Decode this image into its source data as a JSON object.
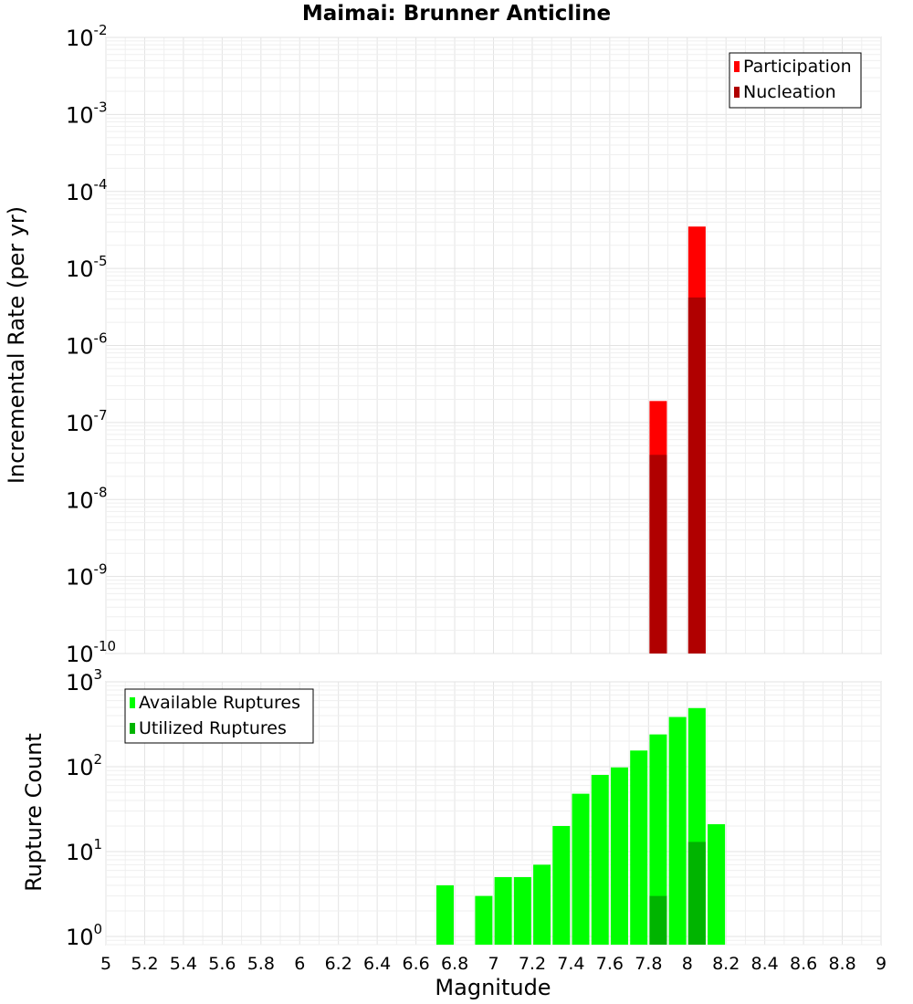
{
  "chart_data": [
    {
      "type": "bar",
      "title": "Maimai: Brunner Anticline",
      "ylabel": "Incremental Rate (per yr)",
      "xlabel": "",
      "xlim": [
        5,
        9
      ],
      "ylim": [
        1e-10,
        0.01
      ],
      "yscale": "log",
      "ytick_exponents": [
        -10,
        -9,
        -8,
        -7,
        -6,
        -5,
        -4,
        -3,
        -2
      ],
      "grid": true,
      "legend_position": "top-right",
      "series": [
        {
          "name": "Participation",
          "color": "#ff0000",
          "points": [
            {
              "x": 7.85,
              "y": 1.9e-07
            },
            {
              "x": 8.05,
              "y": 3.5e-05
            }
          ]
        },
        {
          "name": "Nucleation",
          "color": "#b00000",
          "points": [
            {
              "x": 7.85,
              "y": 3.8e-08
            },
            {
              "x": 8.05,
              "y": 4.2e-06
            }
          ]
        }
      ]
    },
    {
      "type": "bar",
      "title": "",
      "ylabel": "Rupture Count",
      "xlabel": "Magnitude",
      "xlim": [
        5,
        9
      ],
      "ylim": [
        0.8,
        1000
      ],
      "yscale": "log",
      "ytick_exponents": [
        0,
        1,
        2,
        3
      ],
      "xticks": [
        "5",
        "5.2",
        "5.4",
        "5.6",
        "5.8",
        "6",
        "6.2",
        "6.4",
        "6.6",
        "6.8",
        "7",
        "7.2",
        "7.4",
        "7.6",
        "7.8",
        "8",
        "8.2",
        "8.4",
        "8.6",
        "8.8",
        "9"
      ],
      "grid": true,
      "legend_position": "top-left",
      "series": [
        {
          "name": "Available Ruptures",
          "color": "#00ff00",
          "points": [
            {
              "x": 6.75,
              "y": 4
            },
            {
              "x": 6.95,
              "y": 3
            },
            {
              "x": 7.05,
              "y": 5
            },
            {
              "x": 7.15,
              "y": 5
            },
            {
              "x": 7.25,
              "y": 7
            },
            {
              "x": 7.35,
              "y": 20
            },
            {
              "x": 7.45,
              "y": 48
            },
            {
              "x": 7.55,
              "y": 80
            },
            {
              "x": 7.65,
              "y": 98
            },
            {
              "x": 7.75,
              "y": 155
            },
            {
              "x": 7.85,
              "y": 240
            },
            {
              "x": 7.95,
              "y": 385
            },
            {
              "x": 8.05,
              "y": 490
            },
            {
              "x": 8.15,
              "y": 21
            }
          ]
        },
        {
          "name": "Utilized Ruptures",
          "color": "#00b400",
          "points": [
            {
              "x": 7.85,
              "y": 3
            },
            {
              "x": 8.05,
              "y": 13
            }
          ]
        }
      ]
    }
  ]
}
